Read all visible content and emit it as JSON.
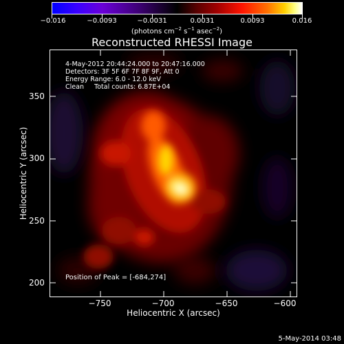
{
  "colorbar": {
    "ticks": [
      "−0.016",
      "−0.0093",
      "−0.0031",
      "0.0031",
      "0.0093",
      "0.016"
    ],
    "units_prefix": "(photons cm",
    "units_exp1": "−2",
    "units_mid": " s",
    "units_exp2": "−1",
    "units_mid2": " asec",
    "units_exp3": "−2",
    "units_suffix": ")",
    "colors": [
      "#0000ff",
      "#6a00d8",
      "#000000",
      "#ff1400",
      "#ffd000",
      "#ffffff"
    ]
  },
  "title": "Reconstructed RHESSI Image",
  "info": {
    "time_range": "4-May-2012 20:44:24.000 to 20:47:16.000",
    "detectors": "Detectors: 3F 5F 6F 7F 8F 9F, Att 0",
    "energy": "Energy Range: 6.0 - 12.0 keV",
    "clean": "Clean     Total counts: 6.87E+04"
  },
  "peak": "Position of Peak = [-684,274]",
  "x_axis": {
    "title": "Heliocentric X (arcsec)",
    "ticks": [
      "−750",
      "−700",
      "−650",
      "−600"
    ],
    "range": [
      -785,
      -590
    ]
  },
  "y_axis": {
    "title": "Heliocentric Y (arcsec)",
    "ticks": [
      "350",
      "300",
      "250",
      "200"
    ],
    "range": [
      195,
      385
    ]
  },
  "timestamp": "5-May-2014 03:48"
}
